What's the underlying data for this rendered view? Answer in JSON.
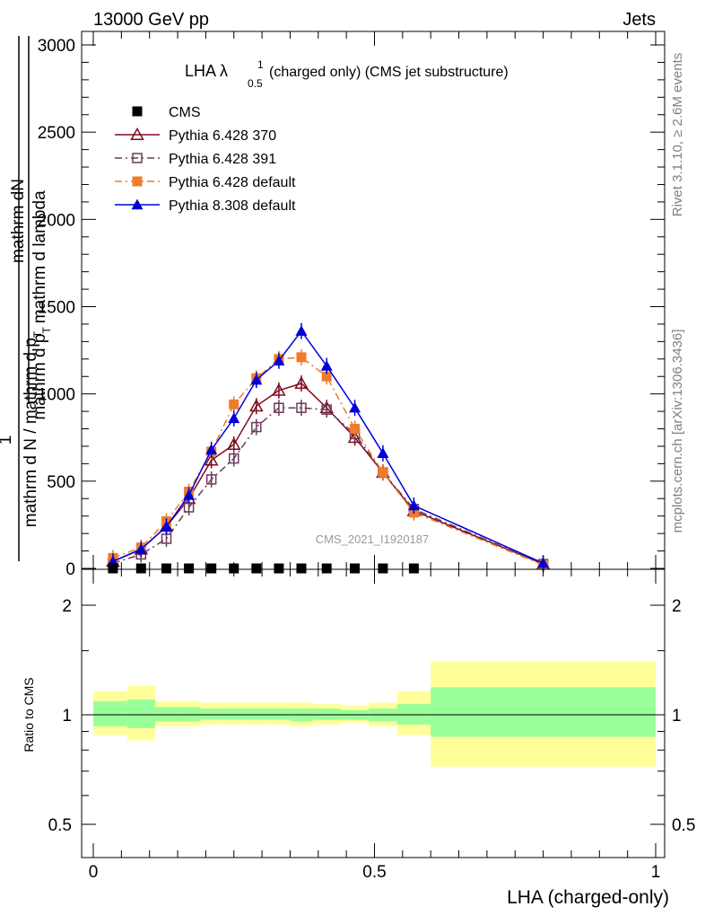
{
  "header": {
    "left": "13000 GeV pp",
    "right": "Jets"
  },
  "side_labels": {
    "rivet": "Rivet 3.1.10, ≥ 2.6M events",
    "mcplots": "mcplots.cern.ch [arXiv:1306.3436]"
  },
  "chart_data": [
    {
      "type": "line",
      "title_main": "LHA λ",
      "title_sup": "1",
      "title_sub": "0.5",
      "title_rest": "(charged only) (CMS jet substructure)",
      "watermark": "CMS_2021_I1920187",
      "ylabel": {
        "numerator": "mathrm dN",
        "line2": "mathrm d p",
        "line2_sub": "T",
        "line2_rest": "mathrm d lambda",
        "one": "1",
        "denominator": "mathrm d N / mathrm d p",
        "denominator_sub": "T"
      },
      "xlim": [
        0,
        1
      ],
      "ylim": [
        0,
        3000
      ],
      "yticks": [
        0,
        500,
        1000,
        1500,
        2000,
        2500,
        3000
      ],
      "yticklabels": [
        "0",
        "500",
        "1000",
        "1500",
        "2000",
        "2500",
        "3000"
      ],
      "legend_position": "top-left",
      "series": [
        {
          "name": "CMS",
          "color": "#000000",
          "marker": "filled-square",
          "linestyle": "none",
          "x": [
            0.035,
            0.085,
            0.13,
            0.17,
            0.21,
            0.25,
            0.29,
            0.33,
            0.37,
            0.415,
            0.465,
            0.515,
            0.57
          ],
          "y": [
            0,
            0,
            0,
            0,
            0,
            0,
            0,
            0,
            0,
            0,
            0,
            0,
            0
          ]
        },
        {
          "name": "Pythia 6.428 370",
          "color": "#7f0b1e",
          "marker": "open-triangle",
          "linestyle": "solid",
          "x": [
            0.035,
            0.085,
            0.13,
            0.17,
            0.21,
            0.25,
            0.29,
            0.33,
            0.37,
            0.415,
            0.465,
            0.515,
            0.57,
            0.8
          ],
          "y": [
            40,
            110,
            240,
            400,
            620,
            710,
            930,
            1020,
            1060,
            920,
            750,
            550,
            330,
            25
          ]
        },
        {
          "name": "Pythia 6.428 391",
          "color": "#6b3a5a",
          "marker": "open-square",
          "linestyle": "dash-dot",
          "x": [
            0.035,
            0.085,
            0.13,
            0.17,
            0.21,
            0.25,
            0.29,
            0.33,
            0.37,
            0.415,
            0.465,
            0.515,
            0.57,
            0.8
          ],
          "y": [
            30,
            80,
            170,
            350,
            510,
            630,
            810,
            920,
            920,
            910,
            770,
            550,
            340,
            25
          ]
        },
        {
          "name": "Pythia 6.428 default",
          "color": "#f07b2b",
          "marker": "filled-square",
          "linestyle": "dash-dot",
          "x": [
            0.035,
            0.085,
            0.13,
            0.17,
            0.21,
            0.25,
            0.29,
            0.33,
            0.37,
            0.415,
            0.465,
            0.515,
            0.57,
            0.8
          ],
          "y": [
            60,
            120,
            270,
            440,
            670,
            940,
            1090,
            1200,
            1210,
            1100,
            800,
            550,
            320,
            20
          ]
        },
        {
          "name": "Pythia 8.308 default",
          "color": "#0000d6",
          "marker": "filled-triangle",
          "linestyle": "solid",
          "x": [
            0.035,
            0.085,
            0.13,
            0.17,
            0.21,
            0.25,
            0.29,
            0.33,
            0.37,
            0.415,
            0.465,
            0.515,
            0.57,
            0.8
          ],
          "y": [
            40,
            110,
            240,
            420,
            680,
            860,
            1080,
            1190,
            1360,
            1160,
            920,
            660,
            360,
            30
          ]
        }
      ]
    },
    {
      "type": "area",
      "ylabel": "Ratio to CMS",
      "xlabel": "LHA (charged-only)",
      "xlim": [
        0,
        1
      ],
      "ylim": [
        0.4,
        2.3
      ],
      "log_y": true,
      "yticks": [
        0.5,
        1,
        2
      ],
      "yticklabels": [
        "0.5",
        "1",
        "2"
      ],
      "xticks": [
        0,
        0.5,
        1
      ],
      "xticklabels": [
        "0",
        "0.5",
        "1"
      ],
      "reference_line": 1,
      "band_colors": {
        "inner": "#99ff99",
        "outer": "#ffff99"
      },
      "bins": [
        {
          "x0": 0.0,
          "x1": 0.06,
          "inner": [
            0.93,
            1.09
          ],
          "outer": [
            0.88,
            1.16
          ]
        },
        {
          "x0": 0.06,
          "x1": 0.11,
          "inner": [
            0.92,
            1.1
          ],
          "outer": [
            0.85,
            1.2
          ]
        },
        {
          "x0": 0.11,
          "x1": 0.15,
          "inner": [
            0.96,
            1.05
          ],
          "outer": [
            0.93,
            1.09
          ]
        },
        {
          "x0": 0.15,
          "x1": 0.19,
          "inner": [
            0.96,
            1.05
          ],
          "outer": [
            0.93,
            1.09
          ]
        },
        {
          "x0": 0.19,
          "x1": 0.23,
          "inner": [
            0.97,
            1.04
          ],
          "outer": [
            0.94,
            1.08
          ]
        },
        {
          "x0": 0.23,
          "x1": 0.27,
          "inner": [
            0.97,
            1.04
          ],
          "outer": [
            0.94,
            1.08
          ]
        },
        {
          "x0": 0.27,
          "x1": 0.31,
          "inner": [
            0.97,
            1.04
          ],
          "outer": [
            0.94,
            1.08
          ]
        },
        {
          "x0": 0.31,
          "x1": 0.35,
          "inner": [
            0.97,
            1.04
          ],
          "outer": [
            0.94,
            1.08
          ]
        },
        {
          "x0": 0.35,
          "x1": 0.39,
          "inner": [
            0.96,
            1.04
          ],
          "outer": [
            0.93,
            1.08
          ]
        },
        {
          "x0": 0.39,
          "x1": 0.44,
          "inner": [
            0.97,
            1.04
          ],
          "outer": [
            0.94,
            1.07
          ]
        },
        {
          "x0": 0.44,
          "x1": 0.49,
          "inner": [
            0.97,
            1.03
          ],
          "outer": [
            0.95,
            1.06
          ]
        },
        {
          "x0": 0.49,
          "x1": 0.54,
          "inner": [
            0.96,
            1.04
          ],
          "outer": [
            0.93,
            1.08
          ]
        },
        {
          "x0": 0.54,
          "x1": 0.6,
          "inner": [
            0.94,
            1.07
          ],
          "outer": [
            0.88,
            1.16
          ]
        },
        {
          "x0": 0.6,
          "x1": 1.0,
          "inner": [
            0.87,
            1.19
          ],
          "outer": [
            0.72,
            1.4
          ]
        }
      ]
    }
  ]
}
